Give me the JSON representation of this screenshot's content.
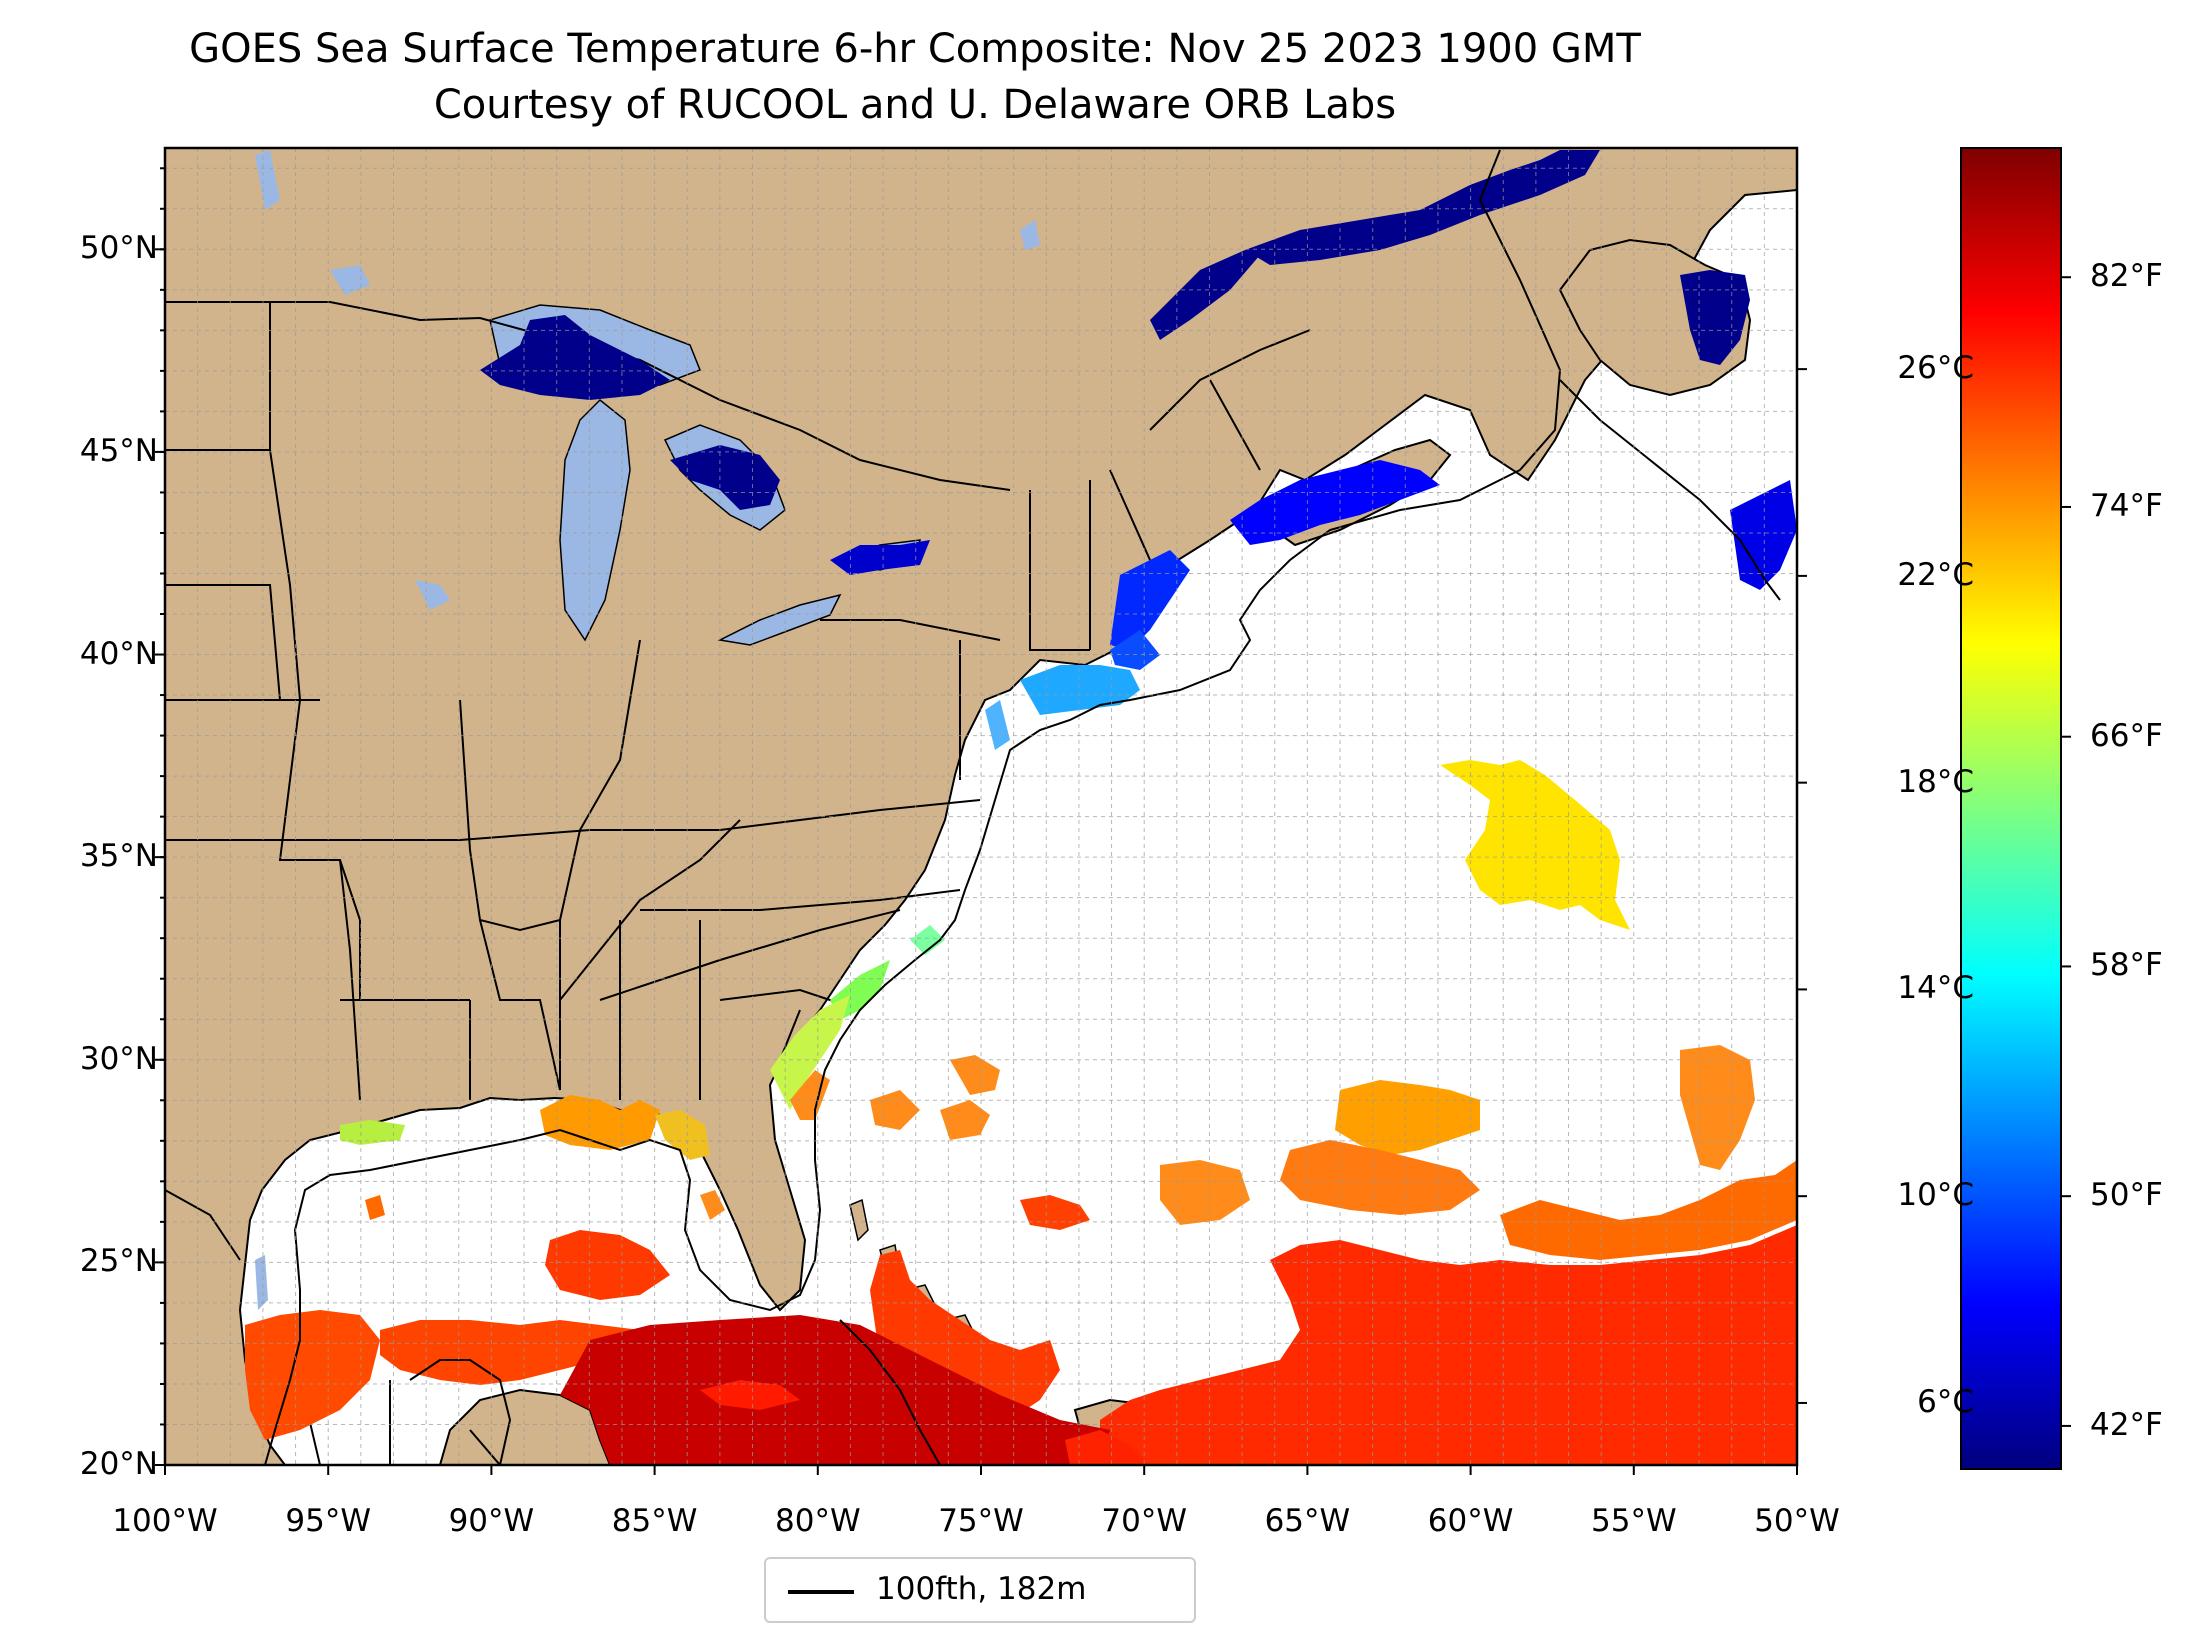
{
  "title": "GOES Sea Surface Temperature 6-hr Composite: Nov 25 2023 1900 GMT",
  "subtitle": "Courtesy of RUCOOL and U. Delaware ORB Labs",
  "map": {
    "extent": {
      "lon_min": -100,
      "lon_max": -50,
      "lat_min": 20,
      "lat_max": 52.5
    },
    "land_color": "#d2b48c",
    "ocean_color": "#ffffff",
    "gridlines": true,
    "lat_ticks": [
      "20°N",
      "25°N",
      "30°N",
      "35°N",
      "40°N",
      "45°N",
      "50°N"
    ],
    "lat_values": [
      20,
      25,
      30,
      35,
      40,
      45,
      50
    ],
    "lon_ticks": [
      "100°W",
      "95°W",
      "90°W",
      "85°W",
      "80°W",
      "75°W",
      "70°W",
      "65°W",
      "60°W",
      "55°W",
      "50°W"
    ],
    "lon_values": [
      -100,
      -95,
      -90,
      -85,
      -80,
      -75,
      -70,
      -65,
      -60,
      -55,
      -50
    ]
  },
  "colorbar": {
    "colormap": "jet",
    "colors": [
      "#00007f",
      "#0000ff",
      "#007fff",
      "#00ffff",
      "#7fff7f",
      "#ffff00",
      "#ff7f00",
      "#ff0000",
      "#7f0000"
    ],
    "range_f": [
      40.5,
      86.5
    ],
    "f_ticks": [
      "42°F",
      "50°F",
      "58°F",
      "66°F",
      "74°F",
      "82°F"
    ],
    "f_values": [
      42,
      50,
      58,
      66,
      74,
      82
    ],
    "c_ticks": [
      "6°C",
      "10°C",
      "14°C",
      "18°C",
      "22°C",
      "26°C"
    ],
    "c_values": [
      6,
      10,
      14,
      18,
      22,
      26
    ]
  },
  "legend": {
    "label": "100fth, 182m",
    "line_color": "#000000",
    "placement": "bottom-center"
  }
}
